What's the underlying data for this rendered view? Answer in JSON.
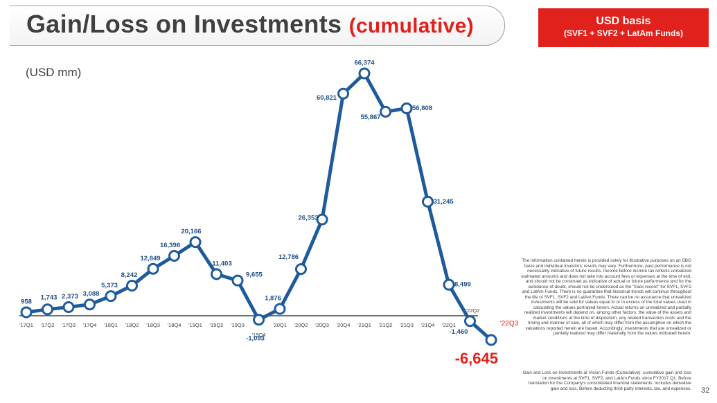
{
  "header": {
    "title": "Gain/Loss on Investments ",
    "title_accent": "(cumulative)"
  },
  "badge": {
    "line1": "USD basis",
    "line2": "(SVF1 + SVF2 + LatAm Funds)"
  },
  "unit_label": "(USD mm)",
  "chart_data": {
    "type": "line",
    "categories": [
      "'17Q1",
      "'17Q2",
      "'17Q3",
      "'17Q4",
      "'18Q1",
      "'18Q2",
      "'18Q3",
      "'18Q4",
      "'19Q1",
      "'19Q2",
      "'19Q3",
      "'19Q4",
      "'20Q1",
      "'20Q2",
      "'20Q3",
      "'20Q4",
      "'21Q1",
      "'21Q2",
      "'21Q3",
      "'21Q4",
      "'22Q1",
      "'22Q2",
      "'22Q3"
    ],
    "values": [
      958,
      1743,
      2373,
      3088,
      5373,
      8242,
      12849,
      16398,
      20166,
      11403,
      9655,
      -1093,
      1876,
      12786,
      26353,
      60821,
      66374,
      55867,
      56808,
      31245,
      8499,
      -1460,
      -6645
    ],
    "data_labels": [
      "958",
      "1,743",
      "2,373",
      "3,088",
      "5,373",
      "8,242",
      "12,849",
      "16,398",
      "20,166",
      "11,403",
      "9,655",
      "-1,093",
      "1,876",
      "12,786",
      "26,353",
      "60,821",
      "66,374",
      "55,867",
      "56,808",
      "31,245",
      "8,499",
      "-1,460",
      "-6,645"
    ],
    "colors": {
      "line": "#1f5b9b",
      "marker_fill": "#ffffff",
      "accent": "#e0211c",
      "axis": "#404040"
    },
    "ylim": [
      -8000,
      70000
    ],
    "grid": false,
    "legend": "none"
  },
  "disclaimer": "The information contained herein is provided solely for illustrative purposes on an SBG basis and individual investors' results may vary. Furthermore, past performance is not necessarily indicative of future results. Income before income tax reflects unrealized estimated amounts and does not take into account fees or expenses at the time of exit, and should not be construed as indicative of actual or future performance and for the avoidance of doubt, should not be understood as the \"track record\" for SVF1, SVF2 and LatAm Funds. There is no guarantee that historical trends will continue throughout the life of SVF1, SVF2 and LatAm Funds. There can be no assurance that unrealized investments will be sold for values equal to or in excess of the total values used in calculating the values portrayed herein. Actual returns on unrealized and partially realized investments will depend on, among other factors, the value of the assets and market conditions at the time of disposition, any related transaction costs and the timing and manner of sale, all of which may differ from the assumption on which the valuations reported herein are based. Accordingly, investments that are unrealized or partially realized may differ materially from the values indicated herein.",
  "source_note": "Gain and Loss on Investments at Vision Funds (Cumulative): cumulative gain and loss on investments at SVF1, SVF2, and LatAm Funds since FY2017 Q1. Before translation for the Company's consolidated financial statements. Includes derivative gain and loss. Before deducting third-party interests, tax, and expenses.",
  "page_number": "32"
}
